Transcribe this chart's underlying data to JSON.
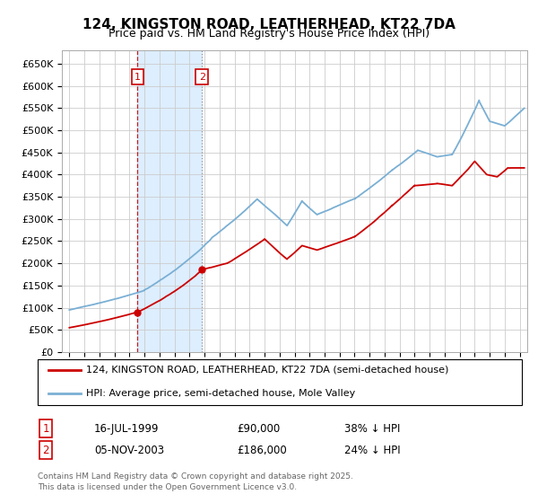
{
  "title": "124, KINGSTON ROAD, LEATHERHEAD, KT22 7DA",
  "subtitle": "Price paid vs. HM Land Registry's House Price Index (HPI)",
  "legend_entry1": "124, KINGSTON ROAD, LEATHERHEAD, KT22 7DA (semi-detached house)",
  "legend_entry2": "HPI: Average price, semi-detached house, Mole Valley",
  "footer": "Contains HM Land Registry data © Crown copyright and database right 2025.\nThis data is licensed under the Open Government Licence v3.0.",
  "annotation1_label": "1",
  "annotation1_date": "16-JUL-1999",
  "annotation1_price": 90000,
  "annotation1_pct": "38% ↓ HPI",
  "annotation2_label": "2",
  "annotation2_date": "05-NOV-2003",
  "annotation2_price": 186000,
  "annotation2_pct": "24% ↓ HPI",
  "sale1_x": 1999.54,
  "sale1_y": 90000,
  "sale2_x": 2003.84,
  "sale2_y": 186000,
  "line_color_price": "#cc0000",
  "line_color_hpi": "#7aafd4",
  "shade_color": "#ddeeff",
  "annotation_box_color": "#cc0000",
  "background_color": "#ffffff",
  "grid_color": "#cccccc",
  "ylim": [
    0,
    680000
  ],
  "yticks": [
    0,
    50000,
    100000,
    150000,
    200000,
    250000,
    300000,
    350000,
    400000,
    450000,
    500000,
    550000,
    600000,
    650000
  ],
  "xlim_start": 1994.5,
  "xlim_end": 2025.5
}
